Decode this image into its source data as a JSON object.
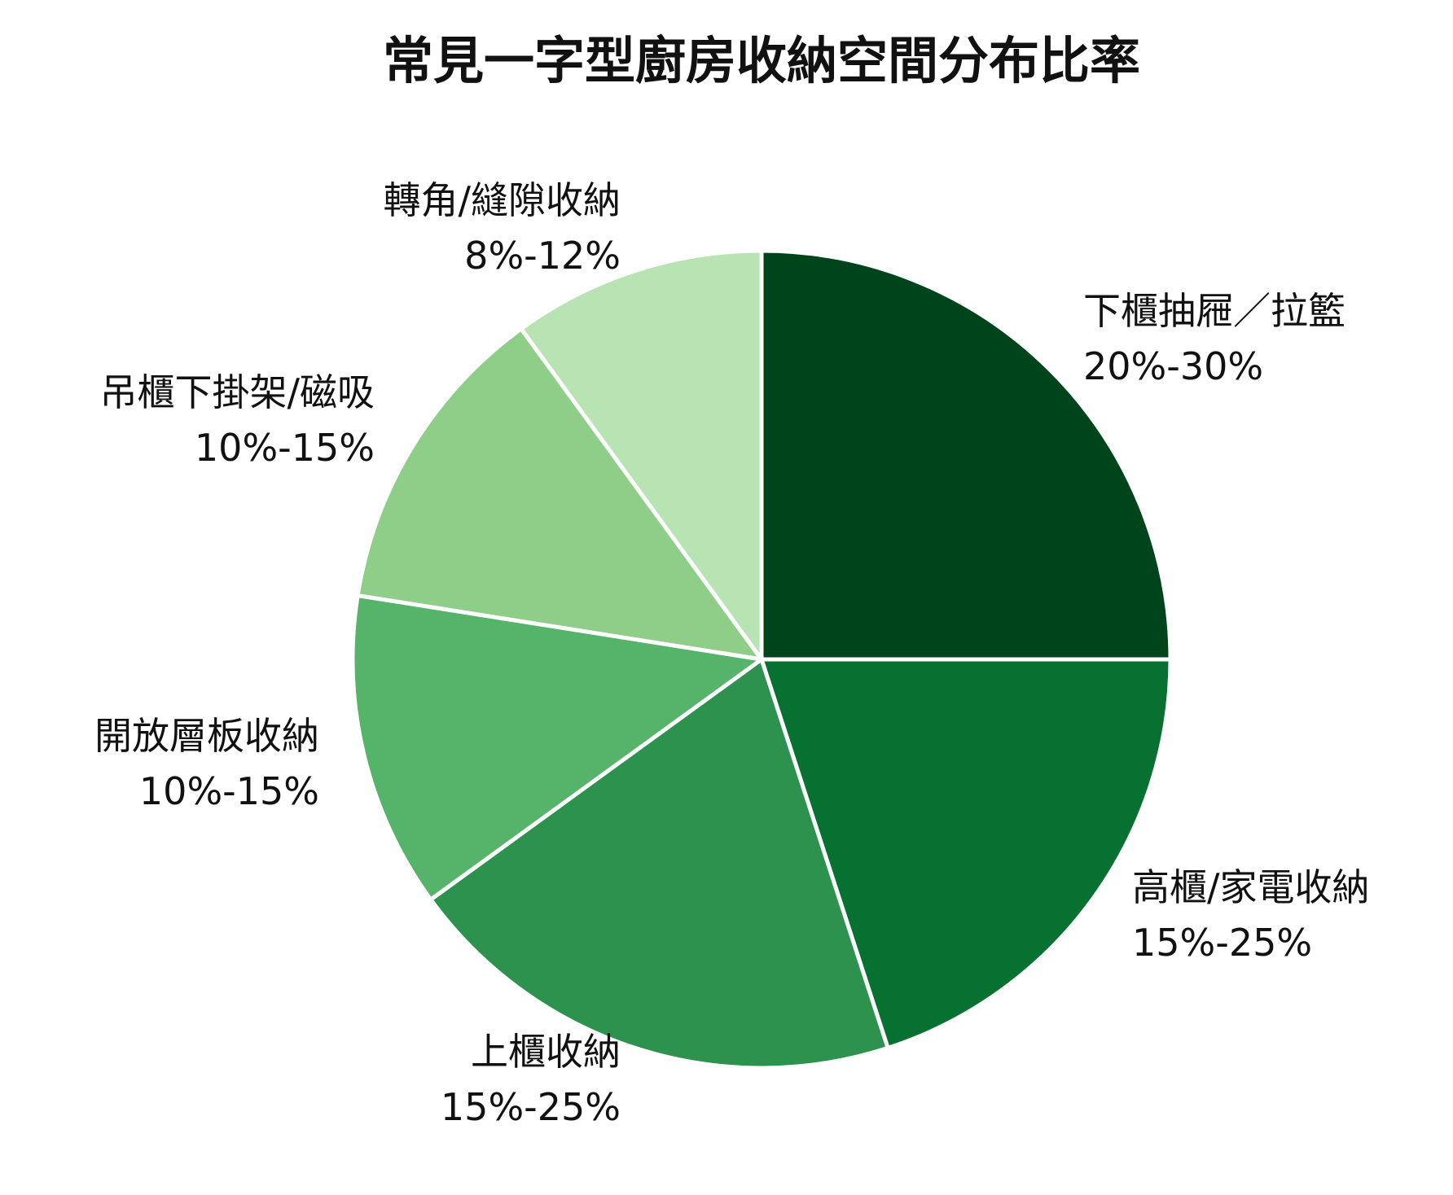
{
  "chart_data": {
    "type": "pie",
    "title": "常見一字型廚房收納空間分布比率",
    "slices": [
      {
        "label": "下櫃抽屜／拉籃",
        "range_text": "20%-30%",
        "value": 25,
        "color": "#00441b"
      },
      {
        "label": "高櫃/家電收納",
        "range_text": "15%-25%",
        "value": 20,
        "color": "#067130"
      },
      {
        "label": "上櫃收納",
        "range_text": "15%-25%",
        "value": 20,
        "color": "#2c924e"
      },
      {
        "label": "開放層板收納",
        "range_text": "10%-15%",
        "value": 12.5,
        "color": "#55b46a"
      },
      {
        "label": "吊櫃下掛架/磁吸",
        "range_text": "10%-15%",
        "value": 12.5,
        "color": "#8ece88"
      },
      {
        "label": "轉角/縫隙收納",
        "range_text": "8%-12%",
        "value": 10,
        "color": "#b8e3b2"
      }
    ],
    "start_angle_deg": 90,
    "direction": "clockwise",
    "legend": "none"
  }
}
